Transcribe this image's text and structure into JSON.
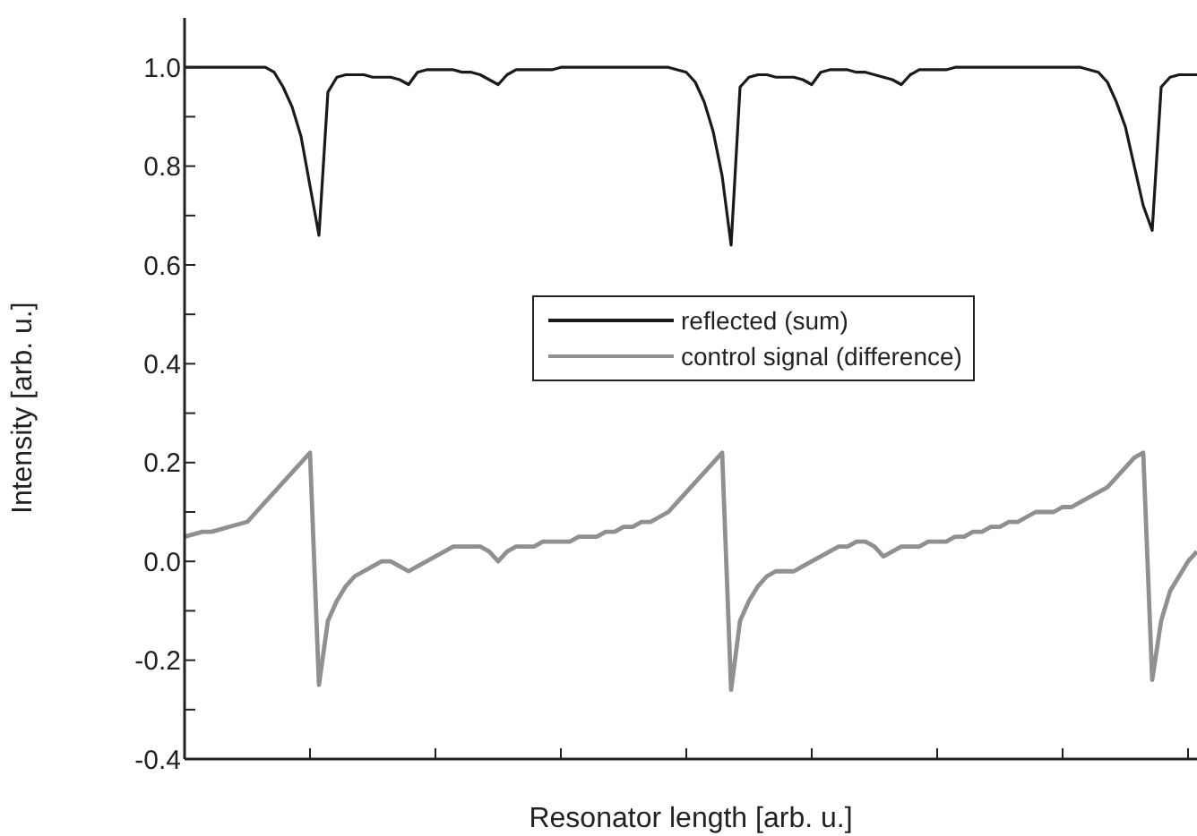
{
  "chart_data": {
    "type": "line",
    "xlabel": "Resonator length [arb. u.]",
    "ylabel": "Intensity [arb. u.]",
    "categories": [
      null,
      null,
      null,
      null,
      null,
      null,
      null,
      null,
      null,
      null,
      null,
      null,
      null,
      null,
      null,
      null,
      null,
      null,
      null,
      null,
      null,
      null,
      null,
      null,
      null,
      null,
      null,
      null,
      null,
      null,
      null,
      null,
      null,
      null,
      null,
      null,
      null,
      null,
      null,
      null,
      null,
      null,
      null,
      null,
      null,
      null,
      null,
      null,
      null,
      null,
      null,
      null,
      null,
      null,
      null,
      null,
      null,
      null,
      null,
      null,
      null,
      null,
      null,
      null,
      null,
      null,
      null,
      null,
      null,
      null,
      null,
      null,
      null,
      null,
      null,
      null,
      null,
      null,
      null,
      null,
      null,
      null,
      null,
      null,
      null,
      null,
      null,
      null,
      null,
      null,
      null,
      null,
      null,
      null,
      null,
      null,
      null,
      null,
      null,
      null,
      null,
      null,
      null,
      null,
      null,
      null,
      null,
      null,
      null,
      null,
      null,
      null,
      null,
      null
    ],
    "ylim": [
      -0.4,
      1.1
    ],
    "yticks": [
      {
        "value": -0.4,
        "label": "-0.4"
      },
      {
        "value": -0.3,
        "label": null
      },
      {
        "value": -0.2,
        "label": "-0.2"
      },
      {
        "value": -0.1,
        "label": null
      },
      {
        "value": 0,
        "label": "0.0"
      },
      {
        "value": 0.1,
        "label": null
      },
      {
        "value": 0.2,
        "label": "0.2"
      },
      {
        "value": 0.3,
        "label": null
      },
      {
        "value": 0.4,
        "label": "0.4"
      },
      {
        "value": 0.5,
        "label": null
      },
      {
        "value": 0.6,
        "label": "0.6"
      },
      {
        "value": 0.7,
        "label": null
      },
      {
        "value": 0.8,
        "label": "0.8"
      },
      {
        "value": 0.9,
        "label": null
      },
      {
        "value": 1,
        "label": "1.0"
      }
    ],
    "grid": false,
    "legend": "right",
    "marker": "none",
    "line_style": "solid",
    "series": [
      {
        "name": "reflected (sum)",
        "color": "#1a1a1a",
        "values": [
          1.0,
          1.0,
          1.0,
          1.0,
          1.0,
          1.0,
          1.0,
          1.0,
          1.0,
          1.0,
          0.99,
          0.96,
          0.92,
          0.86,
          0.76,
          0.66,
          0.95,
          0.98,
          0.985,
          0.985,
          0.985,
          0.98,
          0.98,
          0.98,
          0.975,
          0.965,
          0.99,
          0.995,
          0.995,
          0.995,
          0.995,
          0.99,
          0.99,
          0.985,
          0.975,
          0.965,
          0.985,
          0.995,
          0.995,
          0.995,
          0.995,
          0.995,
          1.0,
          1.0,
          1.0,
          1.0,
          1.0,
          1.0,
          1.0,
          1.0,
          1.0,
          1.0,
          1.0,
          1.0,
          1.0,
          0.995,
          0.99,
          0.97,
          0.93,
          0.87,
          0.78,
          0.64,
          0.96,
          0.98,
          0.985,
          0.985,
          0.98,
          0.98,
          0.98,
          0.975,
          0.965,
          0.99,
          0.995,
          0.995,
          0.995,
          0.99,
          0.99,
          0.985,
          0.98,
          0.975,
          0.965,
          0.985,
          0.995,
          0.995,
          0.995,
          0.995,
          1.0,
          1.0,
          1.0,
          1.0,
          1.0,
          1.0,
          1.0,
          1.0,
          1.0,
          1.0,
          1.0,
          1.0,
          1.0,
          1.0,
          1.0,
          0.995,
          0.99,
          0.97,
          0.93,
          0.88,
          0.8,
          0.72,
          0.67,
          0.96,
          0.98,
          0.985,
          0.985,
          0.985
        ]
      },
      {
        "name": "control signal (difference)",
        "color": "#909090",
        "values": [
          0.05,
          0.055,
          0.06,
          0.06,
          0.065,
          0.07,
          0.075,
          0.08,
          0.1,
          0.12,
          0.14,
          0.16,
          0.18,
          0.2,
          0.22,
          -0.25,
          -0.12,
          -0.08,
          -0.05,
          -0.03,
          -0.02,
          -0.01,
          0.0,
          0.0,
          -0.01,
          -0.02,
          -0.01,
          0.0,
          0.01,
          0.02,
          0.03,
          0.03,
          0.03,
          0.03,
          0.02,
          0.0,
          0.02,
          0.03,
          0.03,
          0.03,
          0.04,
          0.04,
          0.04,
          0.04,
          0.05,
          0.05,
          0.05,
          0.06,
          0.06,
          0.07,
          0.07,
          0.08,
          0.08,
          0.09,
          0.1,
          0.12,
          0.14,
          0.16,
          0.18,
          0.2,
          0.22,
          -0.26,
          -0.12,
          -0.08,
          -0.05,
          -0.03,
          -0.02,
          -0.02,
          -0.02,
          -0.01,
          0.0,
          0.01,
          0.02,
          0.03,
          0.03,
          0.04,
          0.04,
          0.03,
          0.01,
          0.02,
          0.03,
          0.03,
          0.03,
          0.04,
          0.04,
          0.04,
          0.05,
          0.05,
          0.06,
          0.06,
          0.07,
          0.07,
          0.08,
          0.08,
          0.09,
          0.1,
          0.1,
          0.1,
          0.11,
          0.11,
          0.12,
          0.13,
          0.14,
          0.15,
          0.17,
          0.19,
          0.21,
          0.22,
          -0.24,
          -0.12,
          -0.06,
          -0.03,
          0.0,
          0.02
        ]
      }
    ]
  }
}
